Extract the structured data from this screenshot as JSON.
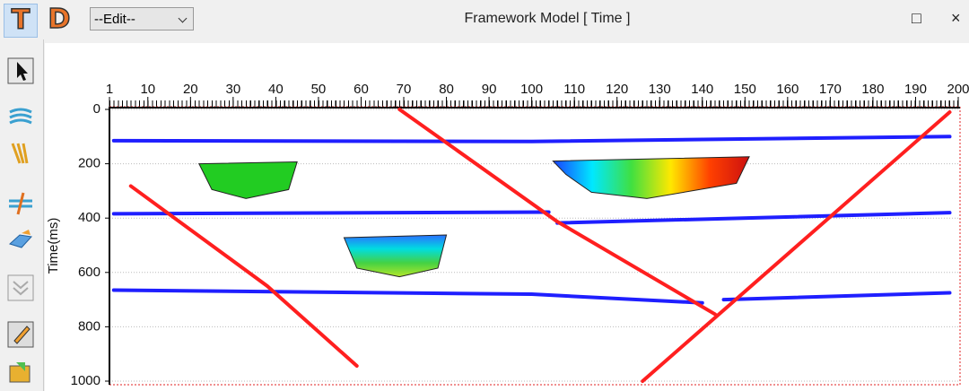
{
  "toolbar": {
    "t_button": "T",
    "d_button": "D",
    "edit_select": "--Edit--",
    "window_title": "Framework Model [ Time ]",
    "maximize": "□",
    "close": "×"
  },
  "chart_data": {
    "type": "line",
    "ylabel": "Time(ms)",
    "xlim": [
      1,
      200
    ],
    "xticks": [
      1,
      10,
      20,
      30,
      40,
      50,
      60,
      70,
      80,
      90,
      100,
      110,
      120,
      130,
      140,
      150,
      160,
      170,
      180,
      190,
      200
    ],
    "ylim": [
      0,
      1000
    ],
    "yticks": [
      0,
      200,
      400,
      600,
      800,
      1000
    ],
    "y_reversed": true,
    "grid": true,
    "series": [
      {
        "color": "#1f1fff",
        "x": [
          2,
          100,
          198
        ],
        "values": [
          115,
          118,
          100
        ]
      },
      {
        "color": "#1f1fff",
        "x": [
          2,
          104,
          null,
          106,
          198
        ],
        "values": [
          384,
          378,
          null,
          418,
          380
        ]
      },
      {
        "color": "#1f1fff",
        "x": [
          2,
          100,
          140,
          null,
          145,
          198
        ],
        "values": [
          665,
          680,
          712,
          null,
          700,
          675
        ]
      },
      {
        "color": "#ff1f1f",
        "x": [
          6,
          38,
          59
        ],
        "values": [
          282,
          650,
          944
        ]
      },
      {
        "color": "#ff1f1f",
        "x": [
          69,
          106,
          143
        ],
        "values": [
          0,
          413,
          754
        ]
      },
      {
        "color": "#ff1f1f",
        "x": [
          126,
          198
        ],
        "values": [
          1000,
          10
        ]
      }
    ],
    "polygons": [
      {
        "x": [
          22,
          45,
          43,
          33,
          25
        ],
        "values": [
          200,
          193,
          295,
          328,
          295
        ],
        "colors": [
          "#22cc22",
          "#22cc22"
        ],
        "gradient": "vertical"
      },
      {
        "x": [
          56,
          80,
          78,
          69,
          59
        ],
        "values": [
          472,
          462,
          584,
          616,
          584
        ],
        "colors": [
          "#2a6fff",
          "#00dde0",
          "#44d244",
          "#b4e62a"
        ],
        "gradient": "vertical"
      },
      {
        "x": [
          105,
          151,
          148,
          127,
          114,
          108
        ],
        "values": [
          190,
          174,
          272,
          328,
          305,
          239
        ],
        "colors": [
          "#1a40ff",
          "#00e8ff",
          "#40e040",
          "#ffe800",
          "#ff4000",
          "#cc1010"
        ],
        "gradient": "horizontal"
      }
    ]
  }
}
